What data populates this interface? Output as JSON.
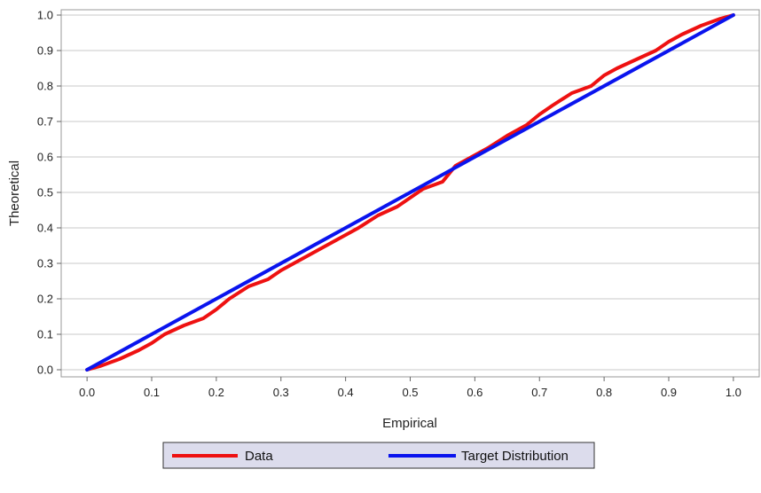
{
  "chart_data": {
    "type": "line",
    "title": "",
    "xlabel": "Empirical",
    "ylabel": "Theoretical",
    "xlim": [
      -0.04,
      1.04
    ],
    "ylim": [
      -0.02,
      1.015
    ],
    "x_ticks": [
      "0.0",
      "0.1",
      "0.2",
      "0.3",
      "0.4",
      "0.5",
      "0.6",
      "0.7",
      "0.8",
      "0.9",
      "1.0"
    ],
    "y_ticks": [
      "0.0",
      "0.1",
      "0.2",
      "0.3",
      "0.4",
      "0.5",
      "0.6",
      "0.7",
      "0.8",
      "0.9",
      "1.0"
    ],
    "grid": "horizontal",
    "legend_position": "bottom",
    "series": [
      {
        "name": "Data",
        "color": "#ee1111",
        "x": [
          0.0,
          0.02,
          0.05,
          0.08,
          0.1,
          0.12,
          0.15,
          0.18,
          0.2,
          0.22,
          0.25,
          0.28,
          0.3,
          0.32,
          0.35,
          0.38,
          0.4,
          0.42,
          0.45,
          0.48,
          0.5,
          0.52,
          0.55,
          0.57,
          0.6,
          0.62,
          0.65,
          0.68,
          0.7,
          0.72,
          0.75,
          0.78,
          0.8,
          0.82,
          0.85,
          0.88,
          0.9,
          0.92,
          0.95,
          0.98,
          1.0
        ],
        "y": [
          0.0,
          0.01,
          0.03,
          0.055,
          0.075,
          0.1,
          0.125,
          0.145,
          0.17,
          0.2,
          0.235,
          0.255,
          0.28,
          0.3,
          0.33,
          0.36,
          0.38,
          0.4,
          0.435,
          0.46,
          0.485,
          0.51,
          0.53,
          0.575,
          0.605,
          0.625,
          0.66,
          0.69,
          0.72,
          0.745,
          0.78,
          0.8,
          0.83,
          0.85,
          0.875,
          0.9,
          0.925,
          0.945,
          0.97,
          0.99,
          1.0
        ]
      },
      {
        "name": "Target Distribution",
        "color": "#0a14ee",
        "x": [
          0.0,
          1.0
        ],
        "y": [
          0.0,
          1.0
        ]
      }
    ]
  }
}
